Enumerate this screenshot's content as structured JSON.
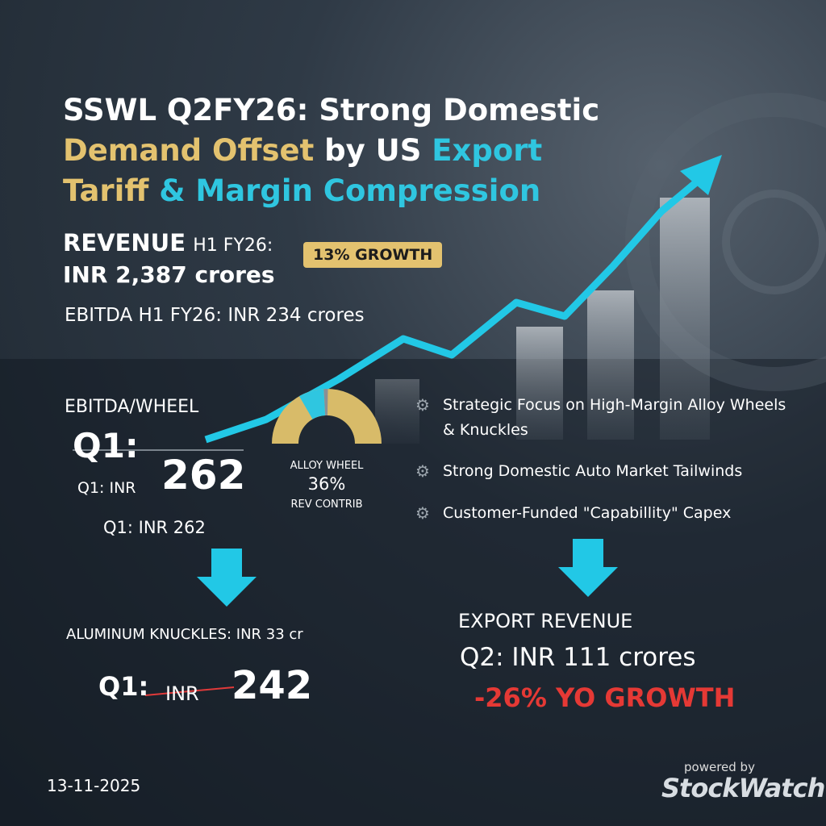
{
  "title": {
    "lines": [
      [
        {
          "text": "SSWL Q2FY26: Strong Domestic"
        }
      ],
      [
        {
          "text": "Demand Offset"
        },
        {
          "text": " by US "
        },
        {
          "text": "Export"
        }
      ],
      [
        {
          "text": "Tariff"
        },
        {
          "text": " & Margin Compression"
        }
      ]
    ]
  },
  "revenue": {
    "label": "REVENUE",
    "period": "H1 FY26:",
    "value": "INR 2,387 crores",
    "badge": "13% GROWTH"
  },
  "ebitda": {
    "text": "EBITDA H1 FY26: INR 234 crores"
  },
  "ebitda_wheel": {
    "heading": "EBITDA/WHEEL",
    "big_label": "Q1:",
    "sub_label": "Q1: INR",
    "value": "262",
    "note": "Q1: INR 262"
  },
  "gauge": {
    "label": "ALLOY WHEEL",
    "value": "36%",
    "caption": "REV CONTRIB"
  },
  "bullets": [
    "Strategic Focus on High-Margin Alloy Wheels & Knuckles",
    "Strong Domestic Auto Market Tailwinds",
    "Customer-Funded \"Capabillity\" Capex"
  ],
  "knuckles": {
    "heading": "ALUMINUM KNUCKLES: INR 33 cr",
    "label": "Q1:",
    "struck": "INR",
    "value": "242"
  },
  "export": {
    "heading": "EXPORT REVENUE",
    "value": "Q2: INR 111 crores",
    "growth": "-26% YO GROWTH"
  },
  "footer": {
    "date": "13-11-2025",
    "powered": "powered by",
    "brand": "StockWatch"
  }
}
